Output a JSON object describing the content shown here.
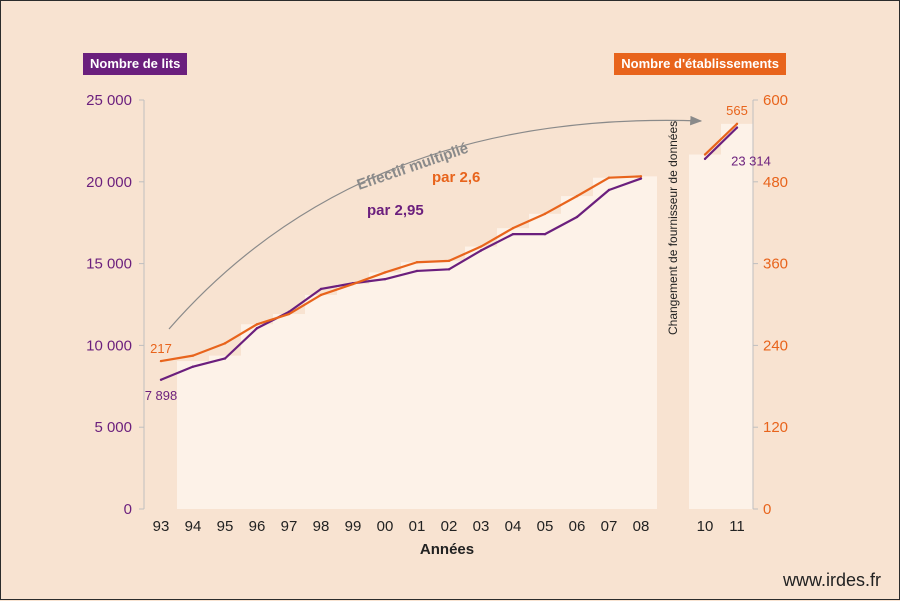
{
  "chart_data": {
    "type": "line",
    "title": "",
    "xlabel": "Années",
    "categories": [
      "93",
      "94",
      "95",
      "96",
      "97",
      "98",
      "99",
      "00",
      "01",
      "02",
      "03",
      "04",
      "05",
      "06",
      "07",
      "08",
      "10",
      "11"
    ],
    "y_left": {
      "label": "Nombre de lits",
      "ticks": [
        "0",
        "5 000",
        "10 000",
        "15 000",
        "20 000",
        "25 000"
      ],
      "range": [
        0,
        25000
      ]
    },
    "y_right": {
      "label": "Nombre d'établissements",
      "ticks": [
        "0",
        "120",
        "240",
        "360",
        "480",
        "600"
      ],
      "range": [
        0,
        600
      ]
    },
    "series": [
      {
        "name": "Nombre de lits",
        "axis": "left",
        "color": "#6b1f7d",
        "values": [
          7898,
          8700,
          9200,
          11050,
          12050,
          13450,
          13800,
          14050,
          14550,
          14650,
          15800,
          16800,
          16800,
          17850,
          19500,
          20200,
          21400,
          23314
        ]
      },
      {
        "name": "Nombre d'établissements",
        "axis": "right",
        "color": "#e8641c",
        "values": [
          217,
          225,
          243,
          271,
          286,
          314,
          330,
          347,
          362,
          364,
          385,
          412,
          433,
          459,
          486,
          488,
          520,
          565
        ]
      }
    ],
    "bar_series_values": [
      null,
      217,
      225,
      271,
      286,
      314,
      330,
      347,
      362,
      364,
      385,
      412,
      433,
      459,
      486,
      488,
      520,
      565
    ],
    "gap_after_category": "08",
    "data_labels": {
      "lits_start": "7 898",
      "lits_end": "23 314",
      "etab_start": "217",
      "etab_end": "565"
    },
    "annotations": {
      "effectif": "Effectif multiplié",
      "lits_factor": "par 2,95",
      "etab_factor": "par 2,6",
      "provider_change": "Changement de fournisseur de données"
    },
    "grid": false,
    "legend": "top"
  },
  "footer": {
    "site": "www.irdes.fr"
  },
  "colors": {
    "background": "#f8e3d1",
    "bars": "#fdf2e8",
    "lits": "#6b1f7d",
    "etablissements": "#e8641c",
    "arrow": "#8a8a8a",
    "axis_text_left": "#6b1f7d",
    "axis_text_right": "#e8641c"
  }
}
